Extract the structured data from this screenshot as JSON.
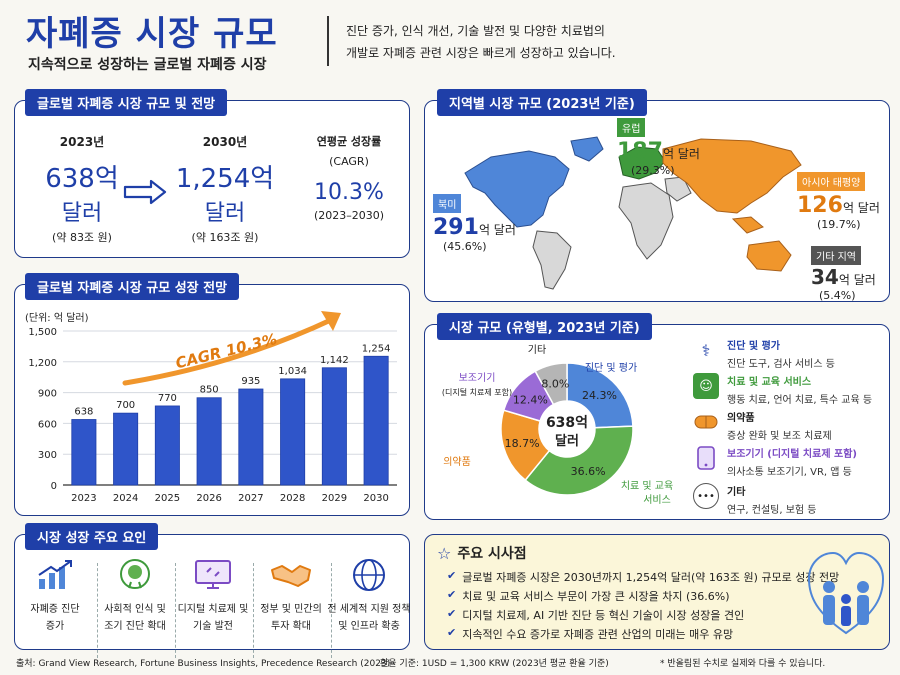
{
  "header": {
    "title": "자폐증 시장 규모",
    "subtitle": "지속적으로 성장하는 글로벌 자폐증 시장",
    "intro_line1": "진단 증가, 인식 개선, 기술 발전 및 다양한 치료법의",
    "intro_line2": "개발로 자폐증 관련 시장은 빠르게 성장하고 있습니다."
  },
  "summary": {
    "tag": "글로벌 자폐증 시장 규모 및 전망",
    "y2023_label": "2023년",
    "y2023_value": "638억",
    "y2023_unit": "달러",
    "y2023_krw": "(약 83조 원)",
    "y2030_label": "2030년",
    "y2030_value": "1,254억",
    "y2030_unit": "달러",
    "y2030_krw": "(약 163조 원)",
    "cagr_label1": "연평균 성장률",
    "cagr_label2": "(CAGR)",
    "cagr_value": "10.3%",
    "cagr_period": "(2023–2030)"
  },
  "regional": {
    "tag": "지역별 시장 규모 (2023년 기준)",
    "regions": [
      {
        "name": "유럽",
        "value": "187",
        "unit": "억 달러",
        "share": "(29.3%)",
        "color": "#3f9a3c"
      },
      {
        "name": "북미",
        "value": "291",
        "unit": "억 달러",
        "share": "(45.6%)",
        "color": "#4f86d8"
      },
      {
        "name": "아시아 태평양",
        "value": "126",
        "unit": "억 달러",
        "share": "(19.7%)",
        "color": "#f0962c"
      },
      {
        "name": "기타 지역",
        "value": "34",
        "unit": "억 달러",
        "share": "(5.4%)",
        "color": "#555555"
      }
    ]
  },
  "growth": {
    "tag": "글로벌 자폐증 시장 규모 성장 전망",
    "unit_label": "(단위: 억 달러)",
    "cagr_annotation": "CAGR 10.3%"
  },
  "chart_data": [
    {
      "type": "bar",
      "title": "글로벌 자폐증 시장 규모 성장 전망",
      "ylabel": "(단위: 억 달러)",
      "categories": [
        "2023",
        "2024",
        "2025",
        "2026",
        "2027",
        "2028",
        "2029",
        "2030"
      ],
      "values": [
        638,
        700,
        770,
        850,
        935,
        1034,
        1142,
        1254
      ],
      "value_labels": [
        "638",
        "700",
        "770",
        "850",
        "935",
        "1,034",
        "1,142",
        "1,254"
      ],
      "ylim": [
        0,
        1500
      ],
      "yticks": [
        "0",
        "300",
        "600",
        "900",
        "1,200",
        "1,500"
      ],
      "grid": true,
      "bar_color": "#2f55c9"
    },
    {
      "type": "pie",
      "title": "시장 규모 (유형별, 2023년 기준)",
      "center_value": "638억",
      "center_unit": "달러",
      "slices": [
        {
          "name": "진단 및 평가",
          "value": 24.3,
          "label": "24.3%",
          "color": "#4f86d8"
        },
        {
          "name": "치료 및 교육 서비스",
          "value": 36.6,
          "label": "36.6%",
          "color": "#5fb04f"
        },
        {
          "name": "의약품",
          "value": 18.7,
          "label": "18.7%",
          "color": "#f0962c"
        },
        {
          "name": "보조기기",
          "value": 12.4,
          "label": "12.4%",
          "color": "#9a6bd6"
        },
        {
          "name": "기타",
          "value": 8.0,
          "label": "8.0%",
          "color": "#b5b5b5"
        }
      ]
    }
  ],
  "type_market": {
    "tag": "시장 규모 (유형별, 2023년 기준)",
    "slice_labels": {
      "diag": "진단 및 평가",
      "treat1": "치료 및 교육",
      "treat2": "서비스",
      "drug": "의약품",
      "aid1": "보조기기",
      "aid2": "(디지털 치료제 포함)",
      "etc": "기타"
    },
    "legend": [
      {
        "title": "진단 및 평가",
        "desc": "진단 도구, 검사 서비스 등",
        "color": "#1f3fa8"
      },
      {
        "title": "치료 및 교육 서비스",
        "desc": "행동 치료, 언어 치료, 특수 교육 등",
        "color": "#3f9a3c"
      },
      {
        "title": "의약품",
        "desc": "증상 완화 및 보조 치료제",
        "color": "#222222"
      },
      {
        "title": "보조기기 (디지털 치료제 포함)",
        "desc": "의사소통 보조기기, VR, 앱 등",
        "color": "#7b4bc4"
      },
      {
        "title": "기타",
        "desc": "연구, 컨설팅, 보험 등",
        "color": "#222222"
      }
    ]
  },
  "factors": {
    "tag": "시장 성장 주요 요인",
    "items": [
      {
        "line1": "자폐증 진단",
        "line2": "증가"
      },
      {
        "line1": "사회적 인식 및",
        "line2": "조기 진단 확대"
      },
      {
        "line1": "디지털 치료제 및",
        "line2": "기술 발전"
      },
      {
        "line1": "정부 및 민간의",
        "line2": "투자 확대"
      },
      {
        "line1": "전 세계적 지원 정책",
        "line2": "및 인프라 확충"
      }
    ]
  },
  "insights": {
    "title": "주요 시사점",
    "items": [
      "글로벌 자폐증 시장은 2030년까지 1,254억 달러(약 163조 원) 규모로 성장 전망",
      "치료 및 교육 서비스 부문이 가장 큰 시장을 차지 (36.6%)",
      "디지털 치료제, AI 기반 진단 등 혁신 기술이 시장 성장을 견인",
      "지속적인 수요 증가로 자폐증 관련 산업의 미래는 매우 유망"
    ]
  },
  "footer": {
    "source": "출처: Grand View Research, Fortune Business Insights, Precedence Research (2023)",
    "exchange": "환율 기준: 1USD = 1,300 KRW (2023년 평균 환율 기준)",
    "note": "* 반올림된 수치로 실제와 다를 수 있습니다."
  }
}
